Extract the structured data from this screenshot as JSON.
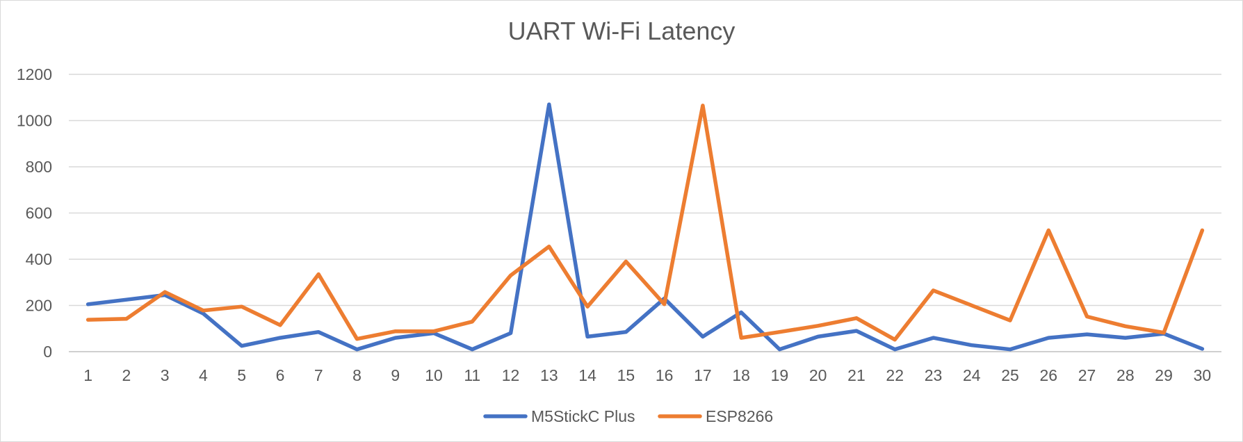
{
  "chart_data": {
    "type": "line",
    "title": "UART Wi-Fi Latency",
    "xlabel": "",
    "ylabel": "",
    "categories": [
      "1",
      "2",
      "3",
      "4",
      "5",
      "6",
      "7",
      "8",
      "9",
      "10",
      "11",
      "12",
      "13",
      "14",
      "15",
      "16",
      "17",
      "18",
      "19",
      "20",
      "21",
      "22",
      "23",
      "24",
      "25",
      "26",
      "27",
      "28",
      "29",
      "30"
    ],
    "ylim": [
      0,
      1200
    ],
    "yticks": [
      "0",
      "200",
      "400",
      "600",
      "800",
      "1000",
      "1200"
    ],
    "grid": true,
    "legend_position": "bottom",
    "series": [
      {
        "name": "M5StickC Plus",
        "color": "#4472C4",
        "values": [
          205,
          225,
          245,
          165,
          25,
          60,
          85,
          10,
          60,
          80,
          10,
          80,
          1070,
          65,
          85,
          230,
          65,
          170,
          10,
          65,
          90,
          10,
          60,
          28,
          10,
          60,
          75,
          60,
          78,
          12
        ]
      },
      {
        "name": "ESP8266",
        "color": "#ED7D31",
        "values": [
          138,
          142,
          258,
          178,
          195,
          115,
          335,
          55,
          88,
          88,
          130,
          330,
          455,
          195,
          390,
          205,
          1065,
          60,
          85,
          112,
          145,
          52,
          265,
          200,
          135,
          525,
          152,
          110,
          82,
          525
        ]
      }
    ]
  }
}
